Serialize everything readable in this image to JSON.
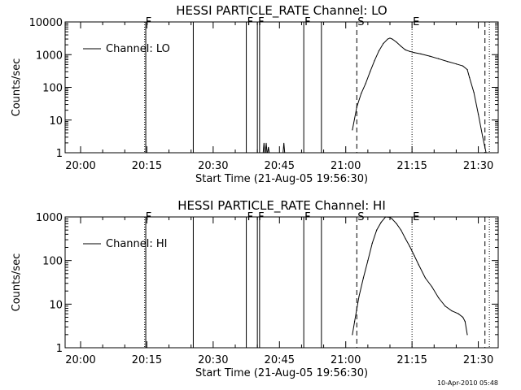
{
  "timestamp": "10-Apr-2010 05:48",
  "chart_data": [
    {
      "type": "line",
      "title": "HESSI PARTICLE_RATE Channel: LO",
      "xlabel": "Start Time (21-Aug-05 19:56:30)",
      "ylabel": "Counts/sec",
      "y_scale": "log",
      "xlim": [
        "19:56:30",
        "21:34:30"
      ],
      "ylim": [
        1,
        10000
      ],
      "x_ticks": [
        "20:00",
        "20:15",
        "20:30",
        "20:45",
        "21:00",
        "21:15",
        "21:30"
      ],
      "y_ticks": [
        "1",
        "10",
        "100",
        "1000",
        "10000"
      ],
      "legend": "top-left",
      "grid": false,
      "series": [
        {
          "name": "Channel: LO",
          "x": [
            "21:01:30",
            "21:02:30",
            "21:03:30",
            "21:04:30",
            "21:05:30",
            "21:06:30",
            "21:07:30",
            "21:08:30",
            "21:09:30",
            "21:10:00",
            "21:10:30",
            "21:11:30",
            "21:12:30",
            "21:13:30",
            "21:14:30",
            "21:15:30",
            "21:17:00",
            "21:19:00",
            "21:21:00",
            "21:23:00",
            "21:25:00",
            "21:26:30",
            "21:27:30",
            "21:28:00",
            "21:29:00",
            "21:30:00",
            "21:31:00",
            "21:31:45"
          ],
          "values": [
            5,
            25,
            65,
            130,
            300,
            650,
            1300,
            2200,
            3000,
            3200,
            3000,
            2400,
            1800,
            1400,
            1250,
            1150,
            1050,
            900,
            750,
            620,
            520,
            450,
            350,
            200,
            70,
            15,
            3,
            1
          ]
        }
      ],
      "markers": [
        {
          "label": "F",
          "style": "dotted",
          "x": "20:14:30"
        },
        {
          "label": "",
          "style": "solid",
          "x": "20:14:45"
        },
        {
          "label": "",
          "style": "solid",
          "x": "20:25:30"
        },
        {
          "label": "F",
          "style": "solid",
          "x": "20:37:30"
        },
        {
          "label": "F",
          "style": "solid",
          "x": "20:40:00"
        },
        {
          "label": "",
          "style": "solid",
          "x": "20:40:30"
        },
        {
          "label": "F",
          "style": "solid",
          "x": "20:50:30"
        },
        {
          "label": "",
          "style": "solid",
          "x": "20:54:30"
        },
        {
          "label": "S",
          "style": "dashed",
          "x": "21:02:30"
        },
        {
          "label": "E",
          "style": "dotted",
          "x": "21:15:00"
        },
        {
          "label": "",
          "style": "dashed",
          "x": "21:31:30"
        },
        {
          "label": "",
          "style": "dotted",
          "x": "21:32:30"
        }
      ],
      "spikes": [
        {
          "x": "20:41:30",
          "value": 2
        },
        {
          "x": "20:42:00",
          "value": 2
        },
        {
          "x": "20:42:30",
          "value": 1.5
        },
        {
          "x": "20:46:00",
          "value": 2
        }
      ]
    },
    {
      "type": "line",
      "title": "HESSI PARTICLE_RATE Channel: HI",
      "xlabel": "Start Time (21-Aug-05 19:56:30)",
      "ylabel": "Counts/sec",
      "y_scale": "log",
      "xlim": [
        "19:56:30",
        "21:34:30"
      ],
      "ylim": [
        1,
        1000
      ],
      "x_ticks": [
        "20:00",
        "20:15",
        "20:30",
        "20:45",
        "21:00",
        "21:15",
        "21:30"
      ],
      "y_ticks": [
        "1",
        "10",
        "100",
        "1000"
      ],
      "legend": "top-left",
      "grid": false,
      "series": [
        {
          "name": "Channel: HI",
          "x": [
            "21:01:30",
            "21:02:00",
            "21:03:00",
            "21:04:00",
            "21:05:00",
            "21:06:00",
            "21:07:00",
            "21:08:00",
            "21:09:00",
            "21:10:00",
            "21:10:30",
            "21:11:30",
            "21:12:30",
            "21:13:30",
            "21:14:30",
            "21:15:30",
            "21:16:30",
            "21:18:00",
            "21:19:30",
            "21:21:00",
            "21:22:30",
            "21:24:00",
            "21:25:30",
            "21:26:30",
            "21:27:00",
            "21:27:30"
          ],
          "values": [
            2,
            4,
            15,
            40,
            100,
            250,
            500,
            750,
            1000,
            980,
            900,
            700,
            500,
            320,
            210,
            130,
            80,
            40,
            25,
            14,
            9,
            7,
            6,
            5,
            4,
            2
          ]
        }
      ],
      "markers": [
        {
          "label": "F",
          "style": "dotted",
          "x": "20:14:30"
        },
        {
          "label": "",
          "style": "solid",
          "x": "20:14:45"
        },
        {
          "label": "",
          "style": "solid",
          "x": "20:25:30"
        },
        {
          "label": "F",
          "style": "solid",
          "x": "20:37:30"
        },
        {
          "label": "F",
          "style": "solid",
          "x": "20:40:00"
        },
        {
          "label": "",
          "style": "solid",
          "x": "20:40:30"
        },
        {
          "label": "F",
          "style": "solid",
          "x": "20:50:30"
        },
        {
          "label": "",
          "style": "solid",
          "x": "20:54:30"
        },
        {
          "label": "S",
          "style": "dashed",
          "x": "21:02:30"
        },
        {
          "label": "E",
          "style": "dotted",
          "x": "21:15:00"
        },
        {
          "label": "",
          "style": "dashed",
          "x": "21:31:30"
        },
        {
          "label": "",
          "style": "dotted",
          "x": "21:32:30"
        }
      ],
      "spikes": []
    }
  ]
}
